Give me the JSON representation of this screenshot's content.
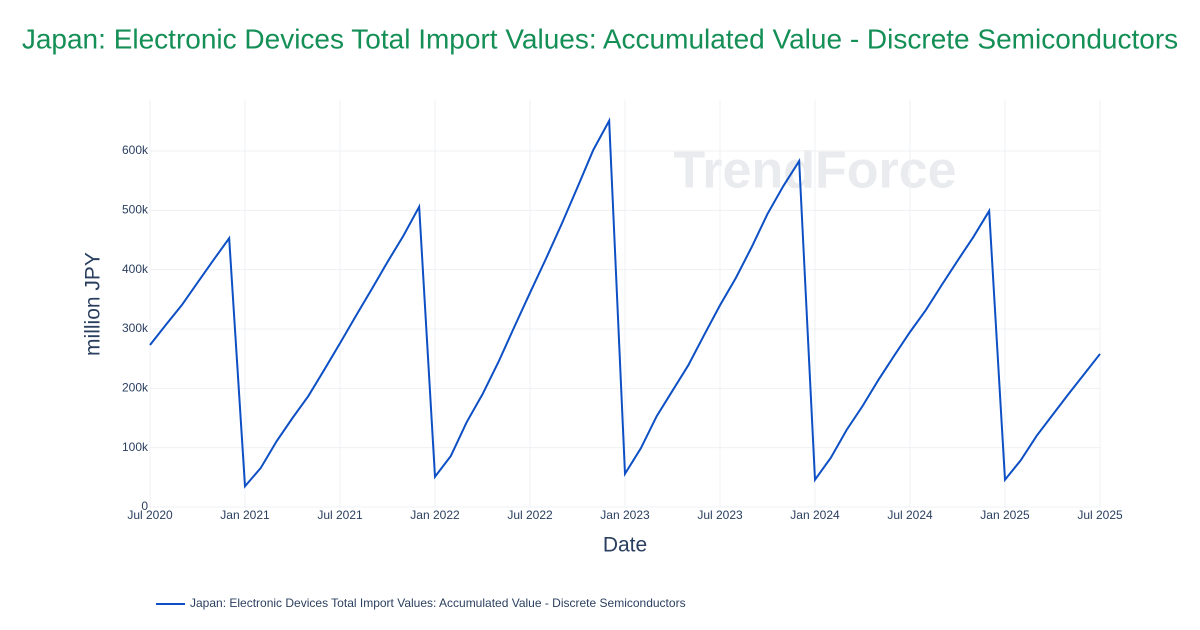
{
  "chart_data": {
    "type": "line",
    "title": "Japan: Electronic Devices Total Import Values: Accumulated Value - Discrete Semiconductors",
    "watermark": "TrendForce",
    "x_label": "Date",
    "y_label": "million JPY",
    "x": [
      "2020-07",
      "2020-08",
      "2020-09",
      "2020-10",
      "2020-11",
      "2020-12",
      "2021-01",
      "2021-02",
      "2021-03",
      "2021-04",
      "2021-05",
      "2021-06",
      "2021-07",
      "2021-08",
      "2021-09",
      "2021-10",
      "2021-11",
      "2021-12",
      "2022-01",
      "2022-02",
      "2022-03",
      "2022-04",
      "2022-05",
      "2022-06",
      "2022-07",
      "2022-08",
      "2022-09",
      "2022-10",
      "2022-11",
      "2022-12",
      "2023-01",
      "2023-02",
      "2023-03",
      "2023-04",
      "2023-05",
      "2023-06",
      "2023-07",
      "2023-08",
      "2023-09",
      "2023-10",
      "2023-11",
      "2023-12",
      "2024-01",
      "2024-02",
      "2024-03",
      "2024-04",
      "2024-05",
      "2024-06",
      "2024-07",
      "2024-08",
      "2024-09",
      "2024-10",
      "2024-11",
      "2024-12",
      "2025-01",
      "2025-02",
      "2025-03",
      "2025-04",
      "2025-05",
      "2025-06",
      "2025-07"
    ],
    "series": [
      {
        "name": "Japan: Electronic Devices Total Import Values: Accumulated Value - Discrete Semiconductors",
        "color": "#0d4fc4",
        "values": [
          273000,
          307000,
          340000,
          378000,
          416000,
          453000,
          35000,
          66000,
          111000,
          150000,
          187000,
          231000,
          276000,
          322000,
          367000,
          413000,
          457000,
          506000,
          51000,
          86000,
          143000,
          190000,
          244000,
          303000,
          361000,
          418000,
          477000,
          539000,
          602000,
          651000,
          56000,
          99000,
          153000,
          196000,
          239000,
          290000,
          340000,
          386000,
          438000,
          494000,
          541000,
          583000,
          46000,
          83000,
          130000,
          170000,
          214000,
          255000,
          295000,
          332000,
          374000,
          415000,
          455000,
          499000,
          46000,
          79000,
          120000,
          155000,
          190000,
          224000,
          258000
        ]
      }
    ],
    "xlim": [
      "2020-07",
      "2025-07"
    ],
    "xticks": [
      {
        "value": "2020-07",
        "label": "Jul 2020"
      },
      {
        "value": "2021-01",
        "label": "Jan 2021"
      },
      {
        "value": "2021-07",
        "label": "Jul 2021"
      },
      {
        "value": "2022-01",
        "label": "Jan 2022"
      },
      {
        "value": "2022-07",
        "label": "Jul 2022"
      },
      {
        "value": "2023-01",
        "label": "Jan 2023"
      },
      {
        "value": "2023-07",
        "label": "Jul 2023"
      },
      {
        "value": "2024-01",
        "label": "Jan 2024"
      },
      {
        "value": "2024-07",
        "label": "Jul 2024"
      },
      {
        "value": "2025-01",
        "label": "Jan 2025"
      },
      {
        "value": "2025-07",
        "label": "Jul 2025"
      }
    ],
    "ylim": [
      0,
      686000
    ],
    "yticks": [
      0,
      {
        "value": 100000,
        "label": "100k"
      },
      {
        "value": 200000,
        "label": "200k"
      },
      {
        "value": 300000,
        "label": "300k"
      },
      {
        "value": 400000,
        "label": "400k"
      },
      {
        "value": 500000,
        "label": "500k"
      },
      {
        "value": 600000,
        "label": "600k"
      }
    ],
    "grid": true
  }
}
